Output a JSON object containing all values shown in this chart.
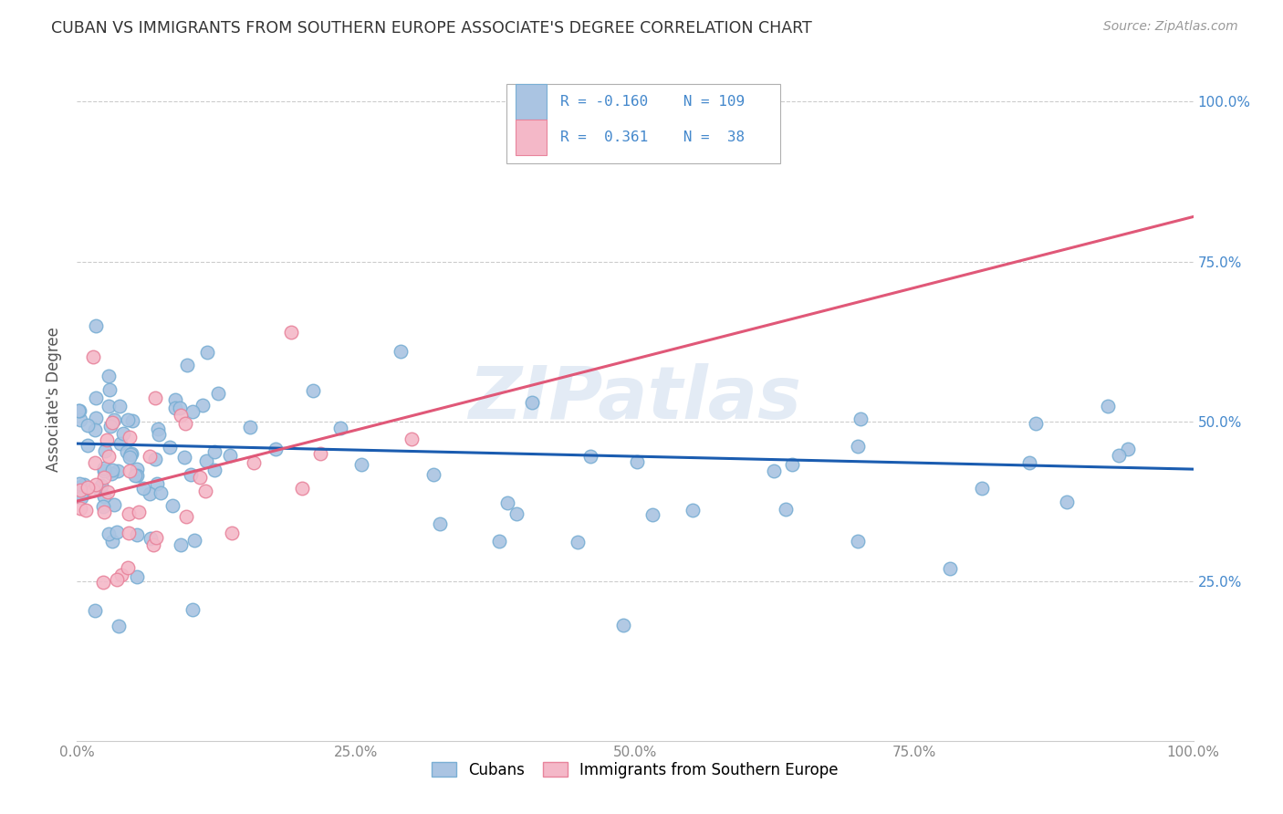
{
  "title": "CUBAN VS IMMIGRANTS FROM SOUTHERN EUROPE ASSOCIATE'S DEGREE CORRELATION CHART",
  "source": "Source: ZipAtlas.com",
  "ylabel": "Associate's Degree",
  "watermark": "ZIPatlas",
  "legend_blue_label": "Cubans",
  "legend_pink_label": "Immigrants from Southern Europe",
  "blue_R": -0.16,
  "blue_N": 109,
  "pink_R": 0.361,
  "pink_N": 38,
  "blue_color": "#aac4e2",
  "blue_edge": "#7aafd4",
  "pink_color": "#f4b8c8",
  "pink_edge": "#e8849c",
  "blue_line_color": "#1a5cb0",
  "pink_line_color": "#e05878",
  "background": "#ffffff",
  "grid_color": "#cccccc",
  "title_color": "#333333",
  "source_color": "#999999",
  "tick_color_blue": "#4488cc",
  "x_tick_color": "#888888"
}
